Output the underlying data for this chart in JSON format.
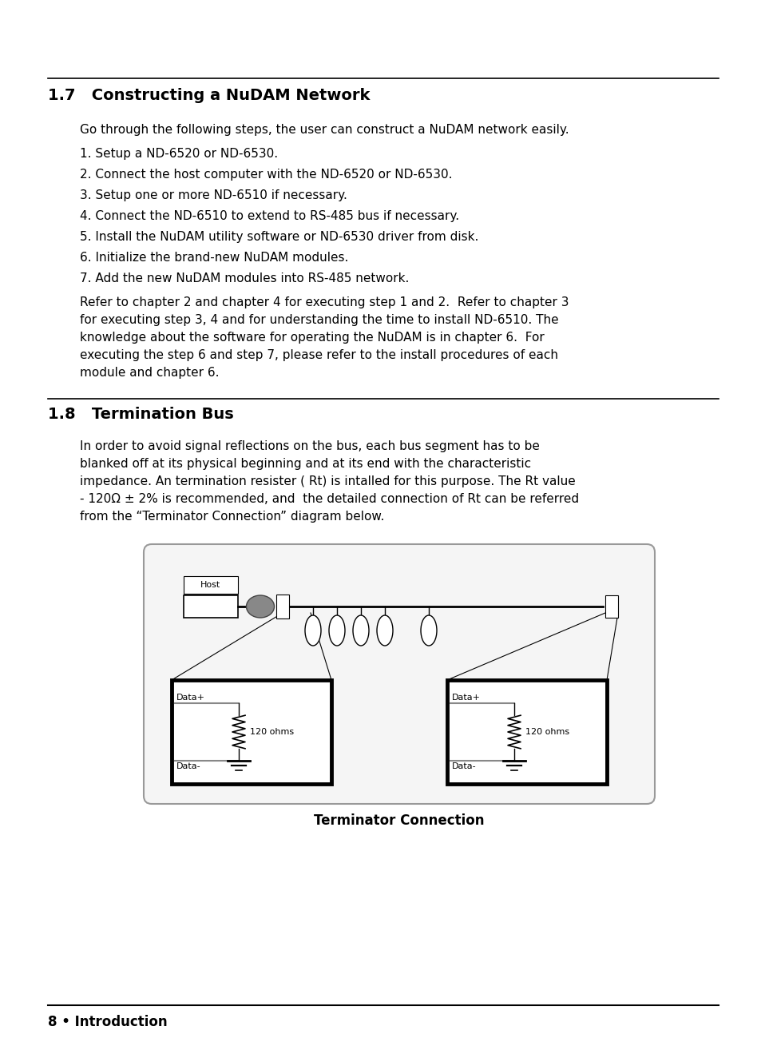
{
  "bg_color": "#ffffff",
  "section1_title": "1.7   Constructing a NuDAM Network",
  "section1_lines": [
    "Go through the following steps, the user can construct a NuDAM network easily.",
    "1. Setup a ND-6520 or ND-6530.",
    "2. Connect the host computer with the ND-6520 or ND-6530.",
    "3. Setup one or more ND-6510 if necessary.",
    "4. Connect the ND-6510 to extend to RS-485 bus if necessary.",
    "5. Install the NuDAM utility software or ND-6530 driver from disk.",
    "6. Initialize the brand-new NuDAM modules.",
    "7. Add the new NuDAM modules into RS-485 network.",
    "Refer to chapter 2 and chapter 4 for executing step 1 and 2.  Refer to chapter 3",
    "for executing step 3, 4 and for understanding the time to install ND-6510. The",
    "knowledge about the software for operating the NuDAM is in chapter 6.  For",
    "executing the step 6 and step 7, please refer to the install procedures of each",
    "module and chapter 6."
  ],
  "section2_title": "1.8   Termination Bus",
  "section2_lines": [
    "In order to avoid signal reflections on the bus, each bus segment has to be",
    "blanked off at its physical beginning and at its end with the characteristic",
    "impedance. An termination resister ( Rt) is intalled for this purpose. The Rt value",
    "- 120Ω ± 2% is recommended, and  the detailed connection of Rt can be referred",
    "from the “Terminator Connection” diagram below."
  ],
  "diagram_caption": "Terminator Connection",
  "footer_text": "8 • Introduction"
}
